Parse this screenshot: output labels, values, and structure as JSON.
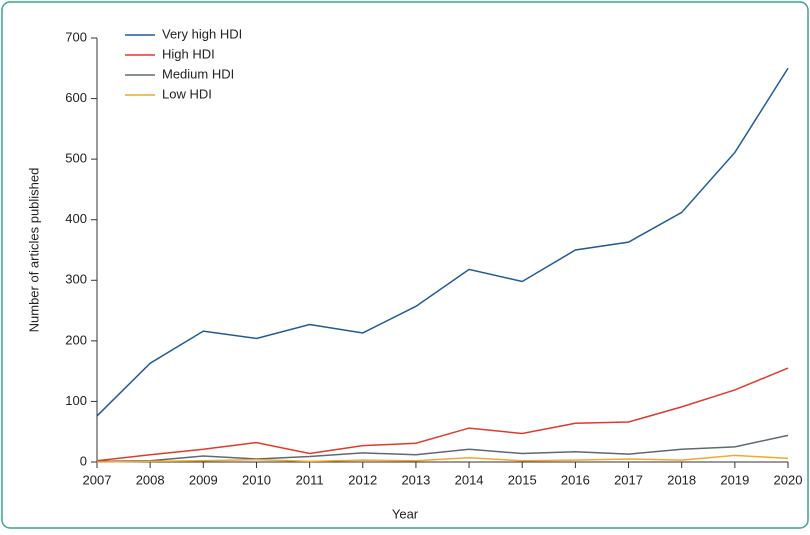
{
  "chart_data": {
    "type": "line",
    "x_label": "Year",
    "y_label": "Number of articles published",
    "x": [
      2007,
      2008,
      2009,
      2010,
      2011,
      2012,
      2013,
      2014,
      2015,
      2016,
      2017,
      2018,
      2019,
      2020
    ],
    "xlim": [
      2007,
      2020
    ],
    "xticks": [
      2007,
      2008,
      2009,
      2010,
      2011,
      2012,
      2013,
      2014,
      2015,
      2016,
      2017,
      2018,
      2019,
      2020
    ],
    "ylim": [
      0,
      700
    ],
    "yticks": [
      0,
      100,
      200,
      300,
      400,
      500,
      600,
      700
    ],
    "grid": false,
    "legend": "top-left",
    "series": [
      {
        "name": "Very high HDI",
        "color": "#1f5a96",
        "values": [
          76,
          163,
          216,
          204,
          227,
          213,
          257,
          318,
          298,
          350,
          363,
          412,
          511,
          650
        ]
      },
      {
        "name": "High HDI",
        "color": "#e03a2e",
        "values": [
          2,
          12,
          21,
          32,
          14,
          27,
          31,
          56,
          47,
          64,
          66,
          91,
          119,
          155
        ]
      },
      {
        "name": "Medium HDI",
        "color": "#5d6a70",
        "values": [
          1,
          2,
          10,
          5,
          9,
          15,
          12,
          21,
          14,
          17,
          13,
          21,
          25,
          44
        ]
      },
      {
        "name": "Low HDI",
        "color": "#f0a830",
        "values": [
          0,
          1,
          2,
          4,
          1,
          3,
          2,
          7,
          2,
          3,
          5,
          3,
          11,
          6
        ]
      }
    ]
  }
}
